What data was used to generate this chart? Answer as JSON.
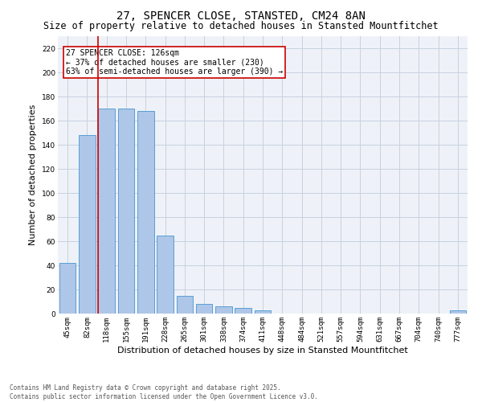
{
  "title": "27, SPENCER CLOSE, STANSTED, CM24 8AN",
  "subtitle": "Size of property relative to detached houses in Stansted Mountfitchet",
  "xlabel": "Distribution of detached houses by size in Stansted Mountfitchet",
  "ylabel": "Number of detached properties",
  "categories": [
    "45sqm",
    "82sqm",
    "118sqm",
    "155sqm",
    "191sqm",
    "228sqm",
    "265sqm",
    "301sqm",
    "338sqm",
    "374sqm",
    "411sqm",
    "448sqm",
    "484sqm",
    "521sqm",
    "557sqm",
    "594sqm",
    "631sqm",
    "667sqm",
    "704sqm",
    "740sqm",
    "777sqm"
  ],
  "values": [
    42,
    148,
    170,
    170,
    168,
    65,
    15,
    8,
    6,
    5,
    3,
    0,
    0,
    0,
    0,
    0,
    0,
    0,
    0,
    0,
    3
  ],
  "bar_color": "#aec6e8",
  "bar_edge_color": "#5a9fd4",
  "vline_index": 2,
  "vline_color": "#cc0000",
  "annotation_text": "27 SPENCER CLOSE: 126sqm\n← 37% of detached houses are smaller (230)\n63% of semi-detached houses are larger (390) →",
  "annotation_box_color": "#cc0000",
  "ylim": [
    0,
    230
  ],
  "yticks": [
    0,
    20,
    40,
    60,
    80,
    100,
    120,
    140,
    160,
    180,
    200,
    220
  ],
  "grid_color": "#c8d0e0",
  "bg_color": "#eef2f8",
  "footer": "Contains HM Land Registry data © Crown copyright and database right 2025.\nContains public sector information licensed under the Open Government Licence v3.0.",
  "title_fontsize": 10,
  "subtitle_fontsize": 8.5,
  "xlabel_fontsize": 8,
  "ylabel_fontsize": 8,
  "tick_fontsize": 6.5,
  "annotation_fontsize": 7,
  "footer_fontsize": 5.5
}
